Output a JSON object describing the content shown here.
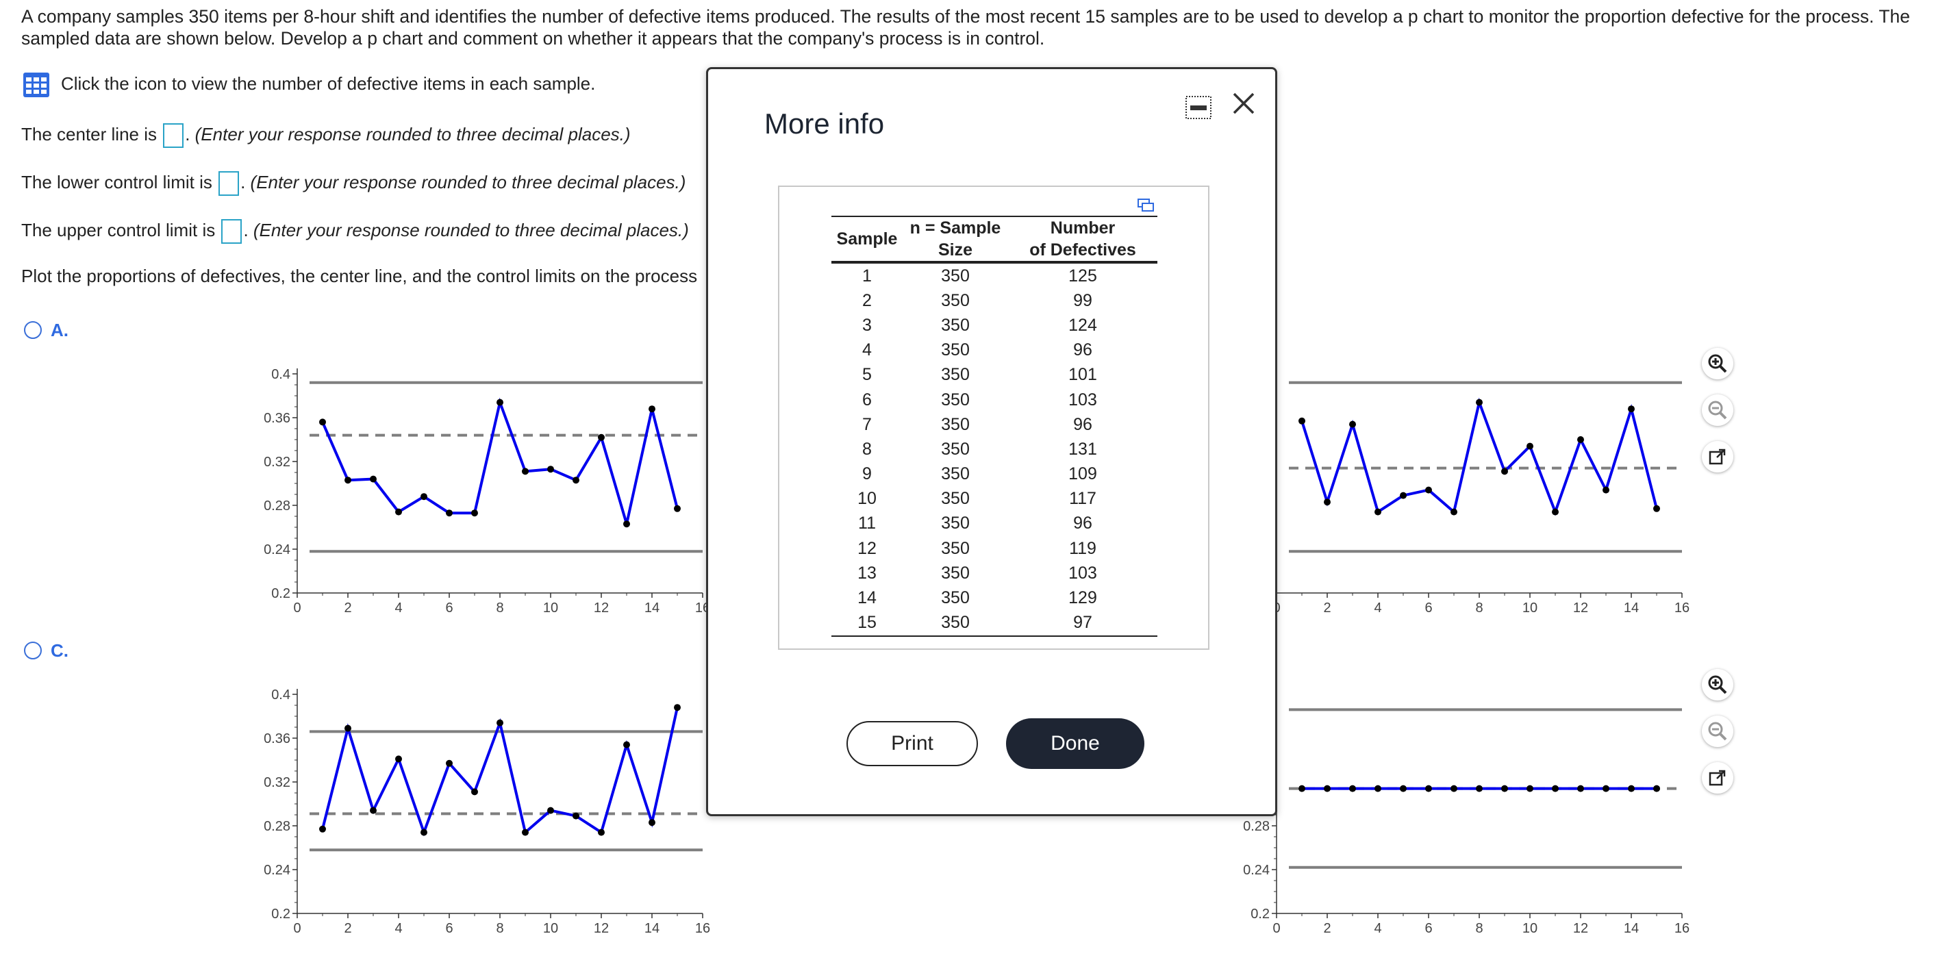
{
  "question": {
    "text": "A company samples 350 items per 8-hour shift and identifies the number of defective items produced. The results of the most recent 15 samples are to be used to develop a p chart to monitor the proportion defective for the process. The sampled data are shown below. Develop a p chart and comment on whether it appears that the company's process is in control."
  },
  "data_link": {
    "icon": "table-grid-icon",
    "label": "Click the icon to view the number of defective items in each sample."
  },
  "center_line": {
    "prefix": "The center line is",
    "hint": "(Enter your response rounded to three decimal places.)"
  },
  "lcl": {
    "prefix": "The lower control limit is",
    "hint": "(Enter your response rounded to three decimal places.)"
  },
  "ucl": {
    "prefix": "The upper control limit is",
    "hint": "(Enter your response rounded to three decimal places.)"
  },
  "plot_instruction": "Plot the proportions of defectives, the center line, and the control limits on the process",
  "options": {
    "a": "A.",
    "c": "C."
  },
  "tools": [
    "zoom-in-icon",
    "zoom-out-icon",
    "pop-out-icon"
  ],
  "colors": {
    "series": "#0000ee",
    "limit": "#7f7f7f",
    "accent": "#2f6ae0",
    "done_bg": "#1e2533"
  },
  "modal": {
    "title": "More info",
    "table_headers": {
      "sample": "Sample",
      "n_line1": "n = Sample",
      "n_line2": "Size",
      "def_line1": "Number",
      "def_line2": "of Defectives"
    },
    "rows": [
      [
        "1",
        "350",
        "125"
      ],
      [
        "2",
        "350",
        "99"
      ],
      [
        "3",
        "350",
        "124"
      ],
      [
        "4",
        "350",
        "96"
      ],
      [
        "5",
        "350",
        "101"
      ],
      [
        "6",
        "350",
        "103"
      ],
      [
        "7",
        "350",
        "96"
      ],
      [
        "8",
        "350",
        "131"
      ],
      [
        "9",
        "350",
        "109"
      ],
      [
        "10",
        "350",
        "117"
      ],
      [
        "11",
        "350",
        "96"
      ],
      [
        "12",
        "350",
        "119"
      ],
      [
        "13",
        "350",
        "103"
      ],
      [
        "14",
        "350",
        "129"
      ],
      [
        "15",
        "350",
        "97"
      ]
    ],
    "print_label": "Print",
    "done_label": "Done"
  },
  "chart_data": [
    {
      "id": "A",
      "type": "line",
      "x": [
        1,
        2,
        3,
        4,
        5,
        6,
        7,
        8,
        9,
        10,
        11,
        12,
        13,
        14,
        15
      ],
      "values": [
        0.356,
        0.303,
        0.304,
        0.274,
        0.288,
        0.273,
        0.273,
        0.374,
        0.311,
        0.313,
        0.303,
        0.342,
        0.263,
        0.368,
        0.277
      ],
      "center": 0.344,
      "ucl": 0.392,
      "lcl": 0.238,
      "xlim": [
        0,
        16
      ],
      "ylim": [
        0.2,
        0.4
      ],
      "xticks": [
        "0",
        "2",
        "4",
        "6",
        "8",
        "10",
        "12",
        "14",
        "16"
      ],
      "yticks": [
        "0.2",
        "0.24",
        "0.28",
        "0.32",
        "0.36",
        "0.4"
      ]
    },
    {
      "id": "B",
      "type": "line",
      "x": [
        1,
        2,
        3,
        4,
        5,
        6,
        7,
        8,
        9,
        10,
        11,
        12,
        13,
        14,
        15
      ],
      "values": [
        0.357,
        0.283,
        0.354,
        0.274,
        0.289,
        0.294,
        0.274,
        0.374,
        0.311,
        0.334,
        0.274,
        0.34,
        0.294,
        0.368,
        0.277
      ],
      "center": 0.314,
      "ucl": 0.392,
      "lcl": 0.238,
      "xlim": [
        0,
        16
      ],
      "ylim": [
        0.2,
        0.4
      ],
      "xticks": [
        "0",
        "2",
        "4",
        "6",
        "8",
        "10",
        "12",
        "14",
        "16"
      ],
      "yticks": [
        "0.2",
        "0.24",
        "0.28",
        "0.32",
        "0.36",
        "0.4"
      ]
    },
    {
      "id": "C",
      "type": "line",
      "x": [
        1,
        2,
        3,
        4,
        5,
        6,
        7,
        8,
        9,
        10,
        11,
        12,
        13,
        14,
        15
      ],
      "values": [
        0.277,
        0.369,
        0.294,
        0.341,
        0.274,
        0.337,
        0.311,
        0.374,
        0.274,
        0.294,
        0.289,
        0.274,
        0.354,
        0.283,
        0.388
      ],
      "center": 0.291,
      "ucl": 0.366,
      "lcl": 0.258,
      "xlim": [
        0,
        16
      ],
      "ylim": [
        0.2,
        0.4
      ],
      "xticks": [
        "0",
        "2",
        "4",
        "6",
        "8",
        "10",
        "12",
        "14",
        "16"
      ],
      "yticks": [
        "0.2",
        "0.24",
        "0.28",
        "0.32",
        "0.36",
        "0.4"
      ]
    },
    {
      "id": "D",
      "type": "line",
      "x": [
        1,
        2,
        3,
        4,
        5,
        6,
        7,
        8,
        9,
        10,
        11,
        12,
        13,
        14,
        15
      ],
      "values": [
        0.314,
        0.314,
        0.314,
        0.314,
        0.314,
        0.314,
        0.314,
        0.314,
        0.314,
        0.314,
        0.314,
        0.314,
        0.314,
        0.314,
        0.314
      ],
      "center": 0.314,
      "ucl": 0.386,
      "lcl": 0.242,
      "xlim": [
        0,
        16
      ],
      "ylim": [
        0.2,
        0.4
      ],
      "xticks": [
        "0",
        "2",
        "4",
        "6",
        "8",
        "10",
        "12",
        "14",
        "16"
      ],
      "yticks": [
        "0.28",
        "0.24",
        "0.2"
      ]
    }
  ]
}
